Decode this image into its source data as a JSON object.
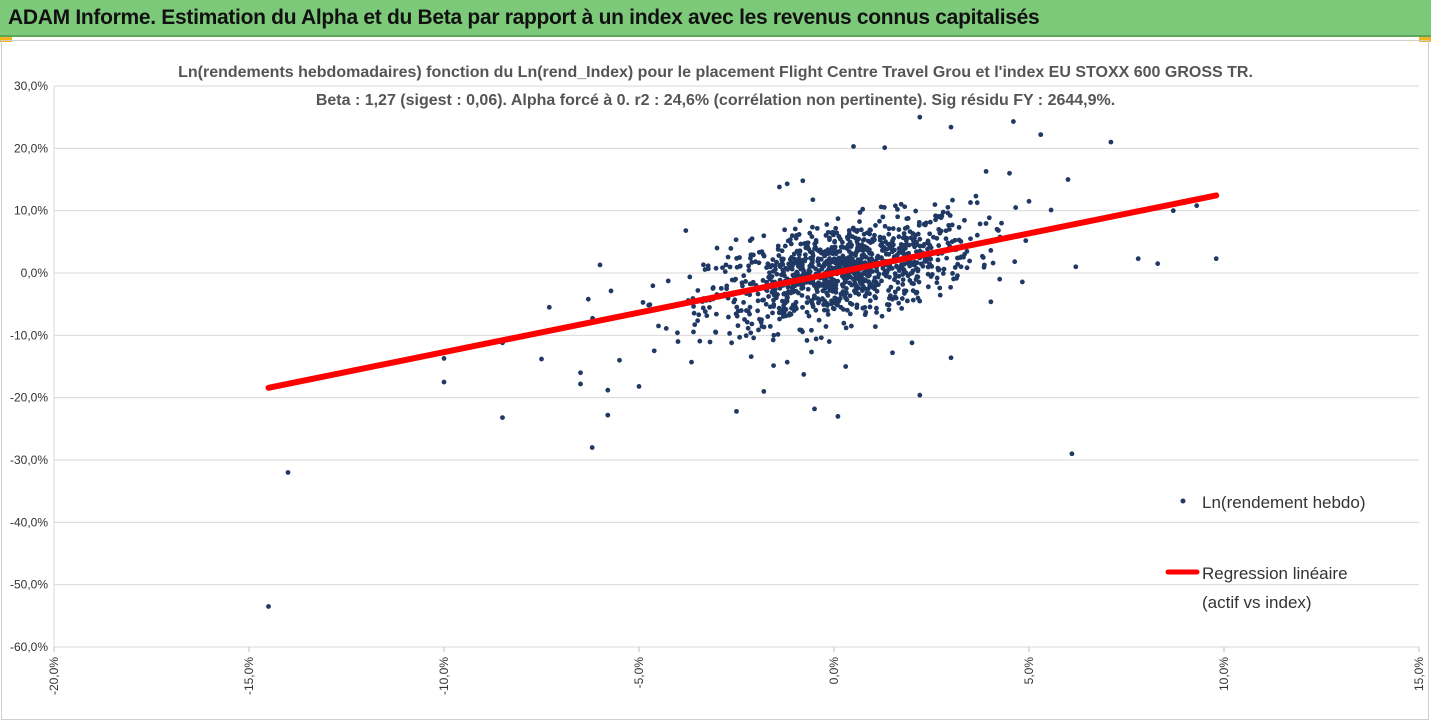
{
  "banner": {
    "title": "ADAM Informe. Estimation du Alpha et du Beta par rapport à un index avec les revenus connus capitalisés"
  },
  "colors": {
    "banner_bg": "#7dc97a",
    "accent_corner": "#f1b320",
    "points": "#1f3864",
    "regression": "#ff0000",
    "grid": "#d9d9d9"
  },
  "chart_data": {
    "type": "scatter",
    "title": "Ln(rendements hebdomadaires) fonction du Ln(rend_Index) pour le placement Flight Centre Travel Grou et l'index EU STOXX 600 GROSS TR.",
    "subtitle": "Beta : 1,27 (sigest : 0,06). Alpha forcé à 0. r2 : 24,6% (corrélation non pertinente). Sig résidu FY : 2644,9%.",
    "xlim": [
      -0.2,
      0.15
    ],
    "ylim": [
      -0.6,
      0.3
    ],
    "x_ticks": [
      "-20,0%",
      "-15,0%",
      "-10,0%",
      "-5,0%",
      "0,0%",
      "5,0%",
      "10,0%",
      "15,0%"
    ],
    "y_ticks": [
      "30,0%",
      "20,0%",
      "10,0%",
      "0,0%",
      "-10,0%",
      "-20,0%",
      "-30,0%",
      "-40,0%",
      "-50,0%",
      "-60,0%"
    ],
    "grid": "horizontal",
    "legend_position": "right",
    "series": [
      {
        "name": "Ln(rendement hebdo)",
        "kind": "points",
        "points": [
          [
            -0.145,
            -0.535
          ],
          [
            -0.14,
            -0.32
          ],
          [
            -0.1,
            -0.137
          ],
          [
            -0.1,
            -0.175
          ],
          [
            -0.085,
            -0.232
          ],
          [
            -0.085,
            -0.112
          ],
          [
            -0.075,
            -0.138
          ],
          [
            -0.073,
            -0.055
          ],
          [
            -0.065,
            -0.16
          ],
          [
            -0.065,
            -0.178
          ],
          [
            -0.062,
            -0.28
          ],
          [
            -0.058,
            -0.228
          ],
          [
            -0.058,
            -0.188
          ],
          [
            -0.055,
            -0.14
          ],
          [
            -0.05,
            -0.182
          ],
          [
            -0.063,
            -0.042
          ],
          [
            -0.06,
            0.013
          ],
          [
            -0.045,
            -0.085
          ],
          [
            -0.04,
            -0.11
          ],
          [
            -0.038,
            0.068
          ],
          [
            -0.025,
            -0.222
          ],
          [
            -0.018,
            -0.19
          ],
          [
            -0.012,
            -0.143
          ],
          [
            -0.005,
            -0.218
          ],
          [
            0.001,
            -0.23
          ],
          [
            0.003,
            -0.15
          ],
          [
            0.015,
            -0.128
          ],
          [
            0.02,
            -0.112
          ],
          [
            0.022,
            -0.196
          ],
          [
            0.03,
            -0.136
          ],
          [
            0.061,
            -0.29
          ],
          [
            0.062,
            0.01
          ],
          [
            0.078,
            0.023
          ],
          [
            0.083,
            0.015
          ],
          [
            0.098,
            0.023
          ],
          [
            0.071,
            0.21
          ],
          [
            0.06,
            0.15
          ],
          [
            0.053,
            0.222
          ],
          [
            0.046,
            0.243
          ],
          [
            0.03,
            0.234
          ],
          [
            0.022,
            0.25
          ],
          [
            0.005,
            0.203
          ],
          [
            0.013,
            0.201
          ],
          [
            0.039,
            0.163
          ],
          [
            0.045,
            0.16
          ],
          [
            -0.012,
            0.143
          ],
          [
            -0.008,
            0.148
          ],
          [
            -0.014,
            0.138
          ],
          [
            0.035,
            0.113
          ],
          [
            0.05,
            0.115
          ],
          [
            0.093,
            0.108
          ],
          [
            0.087,
            0.1
          ],
          [
            0.035,
            0.055
          ],
          [
            -0.021,
            0.055
          ],
          [
            -0.03,
            0.04
          ]
        ]
      },
      {
        "name": "Regression linéaire (actif vs index)",
        "kind": "line",
        "line_x": [
          -0.145,
          0.098
        ],
        "slope": 1.27,
        "intercept": 0.0
      }
    ]
  },
  "legend": {
    "scatter_label": "Ln(rendement hebdo)",
    "line_label_1": "Regression linéaire",
    "line_label_2": "(actif vs index)"
  }
}
